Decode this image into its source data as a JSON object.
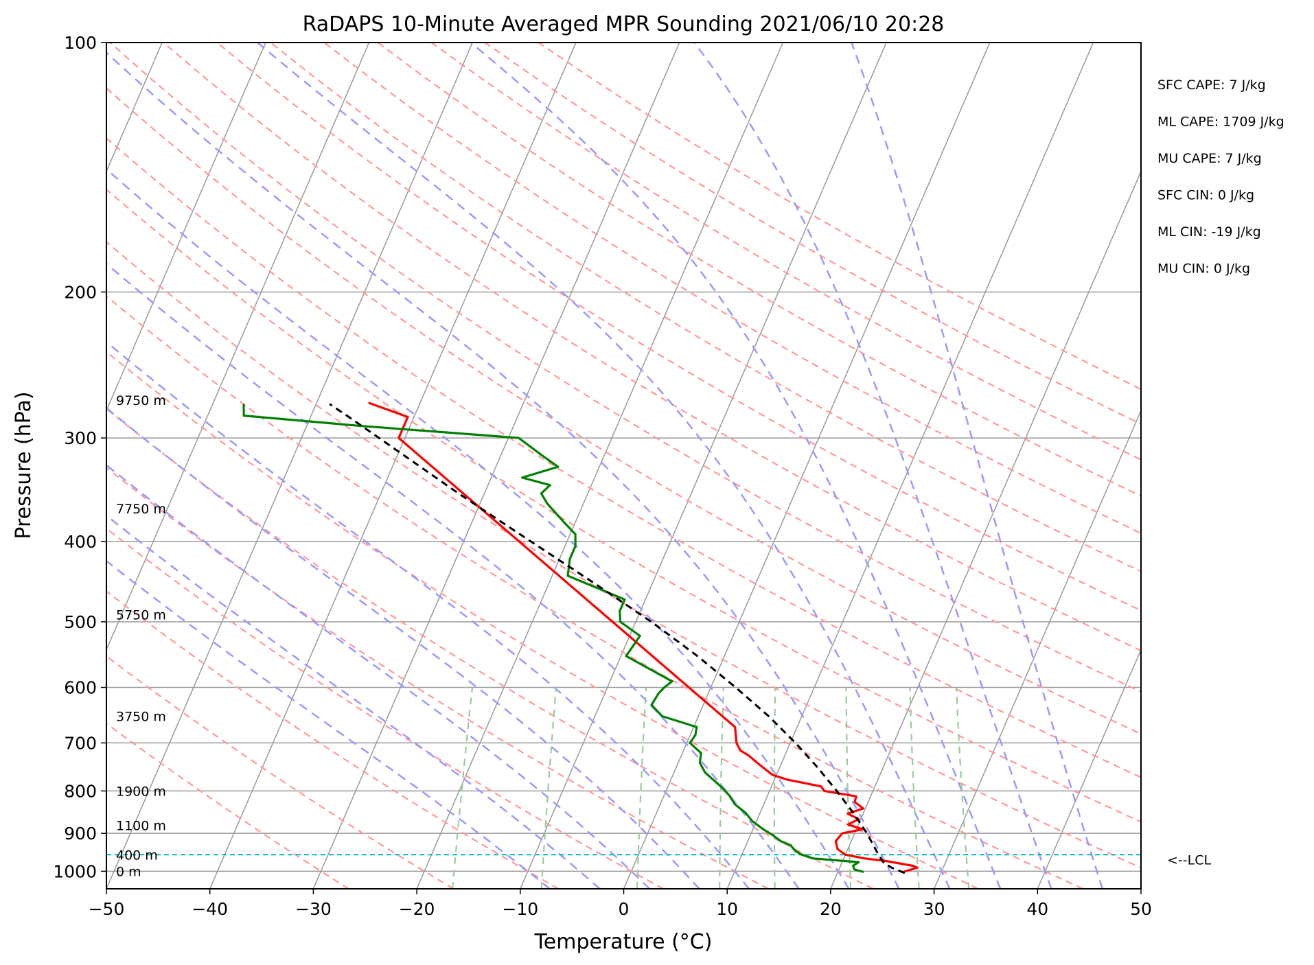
{
  "chart_data": {
    "type": "line",
    "subtype": "skew-T log-p sounding",
    "title": "RaDAPS 10-Minute Averaged MPR Sounding 2021/06/10 20:28",
    "xlabel": "Temperature (°C)",
    "ylabel": "Pressure (hPa)",
    "xlim": [
      -50,
      50
    ],
    "ylim": [
      1050,
      100
    ],
    "y_scale": "log",
    "x_ticks": [
      "−50",
      "−40",
      "−30",
      "−20",
      "−10",
      "0",
      "10",
      "20",
      "30",
      "40",
      "50"
    ],
    "y_ticks": [
      "100",
      "200",
      "300",
      "400",
      "500",
      "600",
      "700",
      "800",
      "900",
      "1000"
    ],
    "grid": true,
    "series": [
      {
        "role": "temperature",
        "color": "#ff0000",
        "points": [
          {
            "p": 1002,
            "t": 26.3
          },
          {
            "p": 990,
            "t": 27.5
          },
          {
            "p": 985,
            "t": 27.0
          },
          {
            "p": 972,
            "t": 24.2
          },
          {
            "p": 965,
            "t": 22.0
          },
          {
            "p": 955,
            "t": 20.0
          },
          {
            "p": 940,
            "t": 19.0
          },
          {
            "p": 920,
            "t": 18.5
          },
          {
            "p": 900,
            "t": 18.8
          },
          {
            "p": 890,
            "t": 20.6
          },
          {
            "p": 878,
            "t": 19.0
          },
          {
            "p": 865,
            "t": 19.8
          },
          {
            "p": 852,
            "t": 18.5
          },
          {
            "p": 840,
            "t": 19.8
          },
          {
            "p": 825,
            "t": 18.7
          },
          {
            "p": 812,
            "t": 18.6
          },
          {
            "p": 800,
            "t": 15.3
          },
          {
            "p": 790,
            "t": 14.8
          },
          {
            "p": 775,
            "t": 11.2
          },
          {
            "p": 765,
            "t": 9.6
          },
          {
            "p": 742,
            "t": 7.8
          },
          {
            "p": 725,
            "t": 6.5
          },
          {
            "p": 715,
            "t": 5.5
          },
          {
            "p": 700,
            "t": 4.8
          },
          {
            "p": 670,
            "t": 4.0
          },
          {
            "p": 300,
            "t": -40.6
          },
          {
            "p": 283,
            "t": -40.6
          },
          {
            "p": 272,
            "t": -45.0
          }
        ]
      },
      {
        "role": "dewpoint",
        "color": "#008000",
        "points": [
          {
            "p": 1002,
            "t": 22.5
          },
          {
            "p": 995,
            "t": 21.5
          },
          {
            "p": 985,
            "t": 21.2
          },
          {
            "p": 975,
            "t": 21.6
          },
          {
            "p": 965,
            "t": 17.0
          },
          {
            "p": 955,
            "t": 15.8
          },
          {
            "p": 945,
            "t": 15.0
          },
          {
            "p": 930,
            "t": 14.3
          },
          {
            "p": 920,
            "t": 13.2
          },
          {
            "p": 905,
            "t": 12.2
          },
          {
            "p": 890,
            "t": 11.0
          },
          {
            "p": 870,
            "t": 9.6
          },
          {
            "p": 850,
            "t": 8.6
          },
          {
            "p": 830,
            "t": 7.2
          },
          {
            "p": 810,
            "t": 6.3
          },
          {
            "p": 790,
            "t": 5.1
          },
          {
            "p": 760,
            "t": 3.0
          },
          {
            "p": 740,
            "t": 2.1
          },
          {
            "p": 720,
            "t": 1.8
          },
          {
            "p": 700,
            "t": 0.3
          },
          {
            "p": 685,
            "t": 0.5
          },
          {
            "p": 670,
            "t": 0.3
          },
          {
            "p": 650,
            "t": -3.5
          },
          {
            "p": 630,
            "t": -5.0
          },
          {
            "p": 610,
            "t": -4.8
          },
          {
            "p": 600,
            "t": -4.5
          },
          {
            "p": 590,
            "t": -4.0
          },
          {
            "p": 550,
            "t": -9.5
          },
          {
            "p": 520,
            "t": -9.0
          },
          {
            "p": 500,
            "t": -11.5
          },
          {
            "p": 485,
            "t": -12.0
          },
          {
            "p": 470,
            "t": -12.0
          },
          {
            "p": 440,
            "t": -18.5
          },
          {
            "p": 420,
            "t": -19.0
          },
          {
            "p": 405,
            "t": -19.0
          },
          {
            "p": 392,
            "t": -19.5
          },
          {
            "p": 380,
            "t": -21.0
          },
          {
            "p": 360,
            "t": -23.5
          },
          {
            "p": 350,
            "t": -24.5
          },
          {
            "p": 342,
            "t": -24.0
          },
          {
            "p": 335,
            "t": -27.0
          },
          {
            "p": 325,
            "t": -24.0
          },
          {
            "p": 315,
            "t": -26.0
          },
          {
            "p": 300,
            "t": -29.0
          },
          {
            "p": 290,
            "t": -45.0
          },
          {
            "p": 282,
            "t": -56.5
          },
          {
            "p": 273,
            "t": -57.0
          }
        ]
      },
      {
        "role": "parcel",
        "color": "#000000",
        "style": "dashed",
        "points": [
          {
            "p": 1005,
            "t": 26.5
          },
          {
            "p": 990,
            "t": 25.0
          },
          {
            "p": 978,
            "t": 24.1
          },
          {
            "p": 955,
            "t": 23.2
          },
          {
            "p": 900,
            "t": 21.2
          },
          {
            "p": 850,
            "t": 19.0
          },
          {
            "p": 800,
            "t": 16.5
          },
          {
            "p": 750,
            "t": 13.7
          },
          {
            "p": 700,
            "t": 10.5
          },
          {
            "p": 650,
            "t": 6.8
          },
          {
            "p": 600,
            "t": 2.4
          },
          {
            "p": 550,
            "t": -2.6
          },
          {
            "p": 500,
            "t": -8.5
          },
          {
            "p": 450,
            "t": -15.5
          },
          {
            "p": 400,
            "t": -23.5
          },
          {
            "p": 350,
            "t": -32.5
          },
          {
            "p": 300,
            "t": -42.5
          },
          {
            "p": 283,
            "t": -46.3
          },
          {
            "p": 273,
            "t": -48.7
          }
        ]
      }
    ],
    "height_labels": [
      {
        "text": "9750 m",
        "p": 270
      },
      {
        "text": "7750 m",
        "p": 365
      },
      {
        "text": "5750 m",
        "p": 490
      },
      {
        "text": "3750 m",
        "p": 650
      },
      {
        "text": "1900 m",
        "p": 800
      },
      {
        "text": "1100 m",
        "p": 880
      },
      {
        "text": "400 m",
        "p": 955
      },
      {
        "text": "0 m",
        "p": 1000
      }
    ],
    "lcl": {
      "p": 955,
      "label": "<--LCL",
      "color": "#00bbbb"
    },
    "stats": [
      "SFC CAPE: 7 J/kg",
      "ML CAPE: 1709 J/kg",
      "MU CAPE: 7 J/kg",
      "SFC CIN: 0 J/kg",
      "ML CIN: -19 J/kg",
      "MU CIN: 0 J/kg"
    ],
    "reference_lines": {
      "dry_adiabat_color": "#ff9999",
      "moist_adiabat_color": "#9999ff",
      "mixing_ratio_color": "#99cc99",
      "isotherm_color": "#999999",
      "isobar_color": "#999999"
    }
  }
}
